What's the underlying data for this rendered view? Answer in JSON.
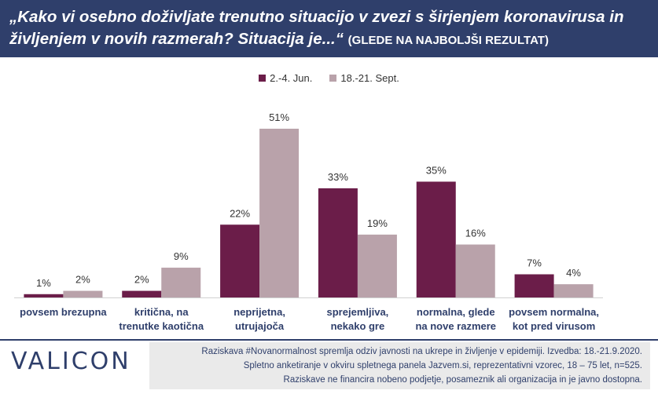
{
  "header": {
    "title_line1": "„Kako vi osebno doživljate trenutno situacijo v zvezi s širjenjem koronavirusa in",
    "title_line2": "življenjem v novih razmerah? Situacija je...“",
    "title_suffix": "(GLEDE NA NAJBOLJŠI REZULTAT)"
  },
  "chart_data": {
    "type": "bar",
    "title": "„Kako vi osebno doživljate trenutno situacijo v zvezi s širjenjem koronavirusa in življenjem v novih razmerah? Situacija je...“ (GLEDE NA NAJBOLJŠI REZULTAT)",
    "categories": [
      [
        "povsem brezupna"
      ],
      [
        "kritična, na",
        "trenutke kaotična"
      ],
      [
        "neprijetna,",
        "utrujajoča"
      ],
      [
        "sprejemljiva,",
        "nekako gre"
      ],
      [
        "normalna, glede",
        "na nove razmere"
      ],
      [
        "povsem normalna,",
        "kot pred virusom"
      ]
    ],
    "series": [
      {
        "name": "2.-4. Jun.",
        "color": "#6b1d49",
        "values": [
          1,
          2,
          22,
          33,
          35,
          7
        ]
      },
      {
        "name": "18.-21. Sept.",
        "color": "#b9a2aa",
        "values": [
          2,
          9,
          51,
          19,
          16,
          4
        ]
      }
    ],
    "value_suffix": "%",
    "ylim": [
      0,
      51
    ],
    "legend_position": "top-center",
    "grid": false
  },
  "footer": {
    "logo": "VALICON",
    "note_line1": "Raziskava #Novanormalnost spremlja odziv javnosti na ukrepe in življenje v epidemiji. Izvedba: 18.-21.9.2020.",
    "note_line2": "Spletno anketiranje v okviru spletnega panela Jazvem.si, reprezentativni vzorec, 18 – 75 let, n=525.",
    "note_line3": "Raziskave ne financira nobeno podjetje, posameznik ali organizacija in je javno dostopna."
  }
}
